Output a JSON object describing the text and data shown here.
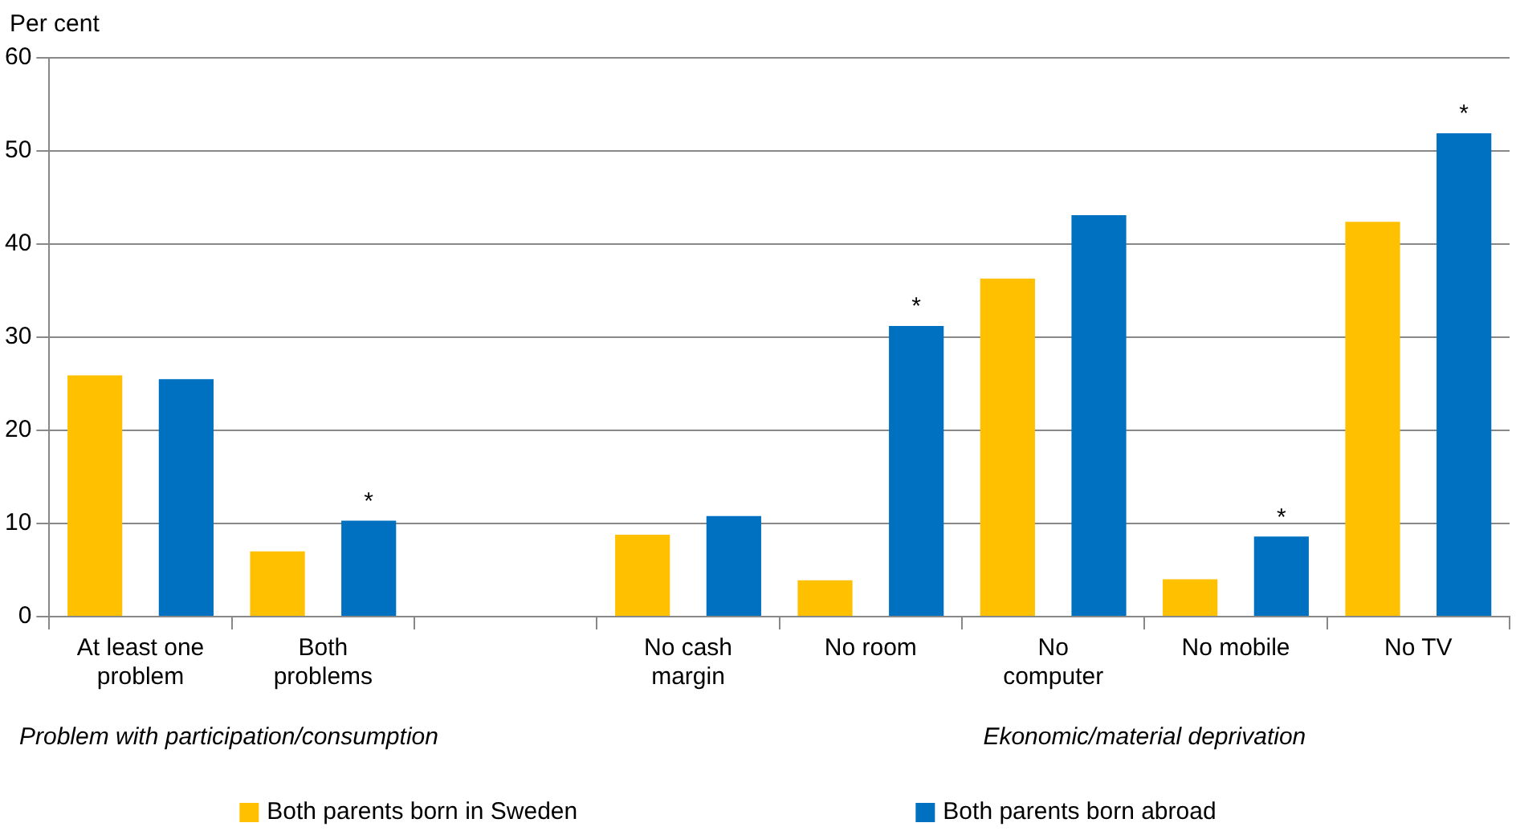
{
  "chart_data": {
    "type": "bar",
    "ylabel": "Per cent",
    "categories": [
      "At least one\nproblem",
      "Both\nproblems",
      null,
      "No cash\nmargin",
      "No room",
      "No\ncomputer",
      "No mobile",
      "No TV"
    ],
    "series": [
      {
        "name": "Both parents born in Sweden",
        "color": "#ffc000",
        "values": [
          25.9,
          7.0,
          null,
          8.8,
          3.9,
          36.3,
          4.0,
          42.4
        ]
      },
      {
        "name": "Both parents born abroad",
        "color": "#0070c0",
        "values": [
          25.5,
          10.3,
          null,
          10.8,
          31.2,
          43.1,
          8.6,
          51.9
        ],
        "value_labels": [
          null,
          "*",
          null,
          null,
          "*",
          null,
          "*",
          "*"
        ]
      }
    ],
    "ylim": [
      0,
      60
    ],
    "yticks": [
      0,
      10,
      20,
      30,
      40,
      50,
      60
    ],
    "grid": "y",
    "legend": "bottom",
    "annotations": [
      "Problem with participation/consumption",
      "Ekonomic/material deprivation"
    ]
  }
}
